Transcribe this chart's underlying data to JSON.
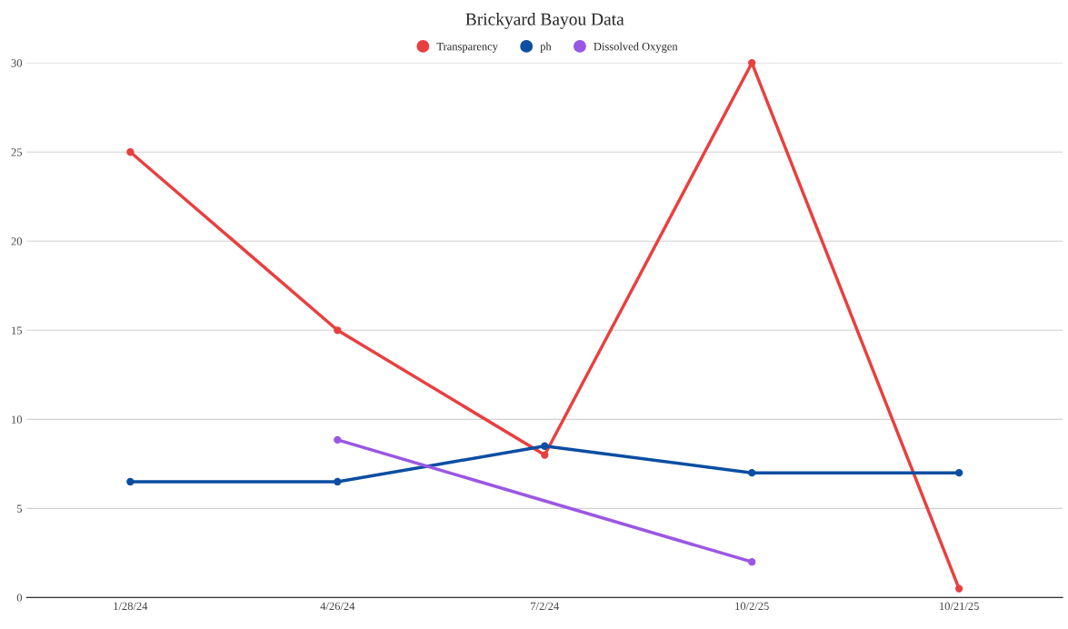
{
  "chart_data": {
    "type": "line",
    "title": "Brickyard Bayou Data",
    "categories": [
      "1/28/24",
      "4/26/24",
      "7/2/24",
      "10/2/25",
      "10/21/25"
    ],
    "series": [
      {
        "name": "Transparency",
        "color": "#e8403f",
        "values": [
          25,
          15,
          8,
          30,
          0.5
        ]
      },
      {
        "name": "ph",
        "color": "#0b4ea2",
        "values": [
          6.5,
          6.5,
          8.5,
          7,
          7
        ]
      },
      {
        "name": "Dissolved Oxygen",
        "color": "#9a57e3",
        "x": [
          "4/26/24",
          "10/2/25"
        ],
        "values": [
          8.85,
          2
        ]
      }
    ],
    "ylim": [
      0,
      30
    ],
    "yticks": [
      0,
      5,
      10,
      15,
      20,
      25,
      30
    ],
    "grid": "y",
    "legend": "top",
    "marker": "circle",
    "line_style": "solid"
  }
}
